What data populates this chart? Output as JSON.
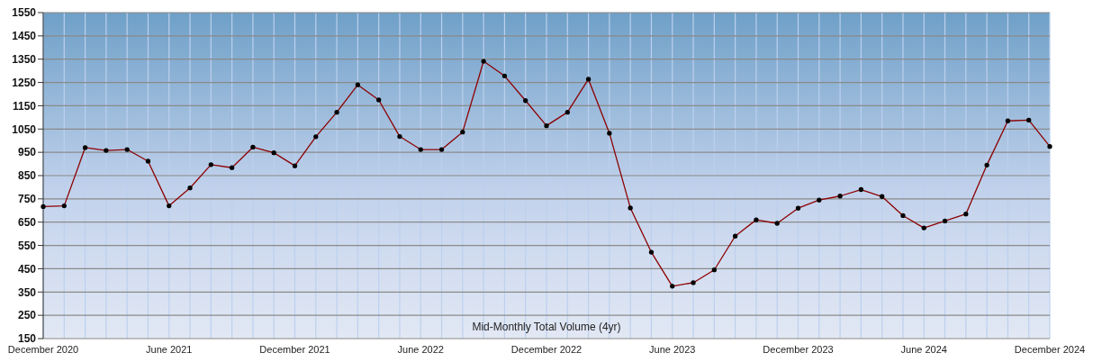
{
  "chart_data": {
    "type": "line",
    "xlabel": "Mid-Monthly Total Volume (4yr)",
    "categories": [
      "December 2020",
      null,
      null,
      null,
      null,
      null,
      "June 2021",
      null,
      null,
      null,
      null,
      null,
      "December 2021",
      null,
      null,
      null,
      null,
      null,
      "June 2022",
      null,
      null,
      null,
      null,
      null,
      "December 2022",
      null,
      null,
      null,
      null,
      null,
      "June 2023",
      null,
      null,
      null,
      null,
      null,
      "December 2023",
      null,
      null,
      null,
      null,
      null,
      "June 2024",
      null,
      null,
      null,
      null,
      null,
      "December 2024"
    ],
    "series": [
      {
        "color": "#8b0000",
        "values": [
          717,
          720,
          970,
          958,
          962,
          912,
          720,
          797,
          897,
          884,
          972,
          948,
          892,
          1017,
          1122,
          1240,
          1175,
          1018,
          962,
          962,
          1037,
          1341,
          1278,
          1172,
          1064,
          1122,
          1264,
          1032,
          711,
          521,
          375,
          390,
          445,
          590,
          660,
          645,
          710,
          745,
          762,
          790,
          760,
          678,
          625,
          655,
          685,
          895,
          1085,
          1088,
          975
        ]
      }
    ],
    "ylim": [
      150,
      1550
    ],
    "yticks": [
      150,
      250,
      350,
      450,
      550,
      650,
      750,
      850,
      950,
      1050,
      1150,
      1250,
      1350,
      1450,
      1550
    ],
    "grid": true,
    "marker": "circle",
    "line_style": "solid"
  }
}
